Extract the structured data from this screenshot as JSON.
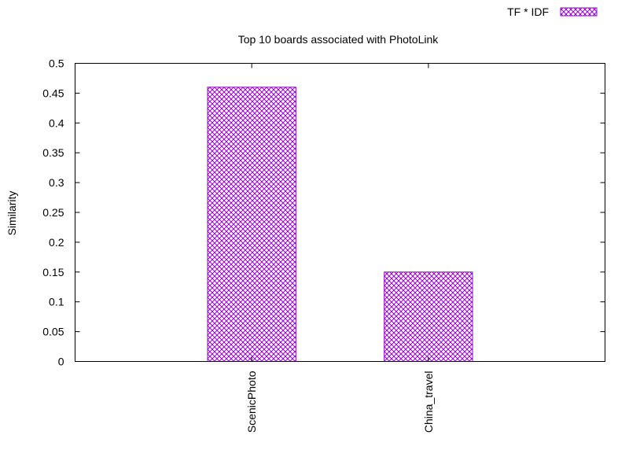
{
  "chart_data": {
    "type": "bar",
    "title": "Top 10 boards associated with PhotoLink",
    "xlabel": "",
    "ylabel": "Similarity",
    "categories": [
      "ScenicPhoto",
      "China_travel"
    ],
    "series": [
      {
        "name": "TF * IDF",
        "values": [
          0.46,
          0.15
        ]
      }
    ],
    "ylim": [
      0,
      0.5
    ],
    "yticks": [
      "0",
      "0.05",
      "0.1",
      "0.15",
      "0.2",
      "0.25",
      "0.3",
      "0.35",
      "0.4",
      "0.45",
      "0.5"
    ],
    "grid": false,
    "legend_position": "top-right",
    "colors": {
      "bar": "#9400d3",
      "axis": "#000000",
      "background": "#ffffff"
    }
  }
}
